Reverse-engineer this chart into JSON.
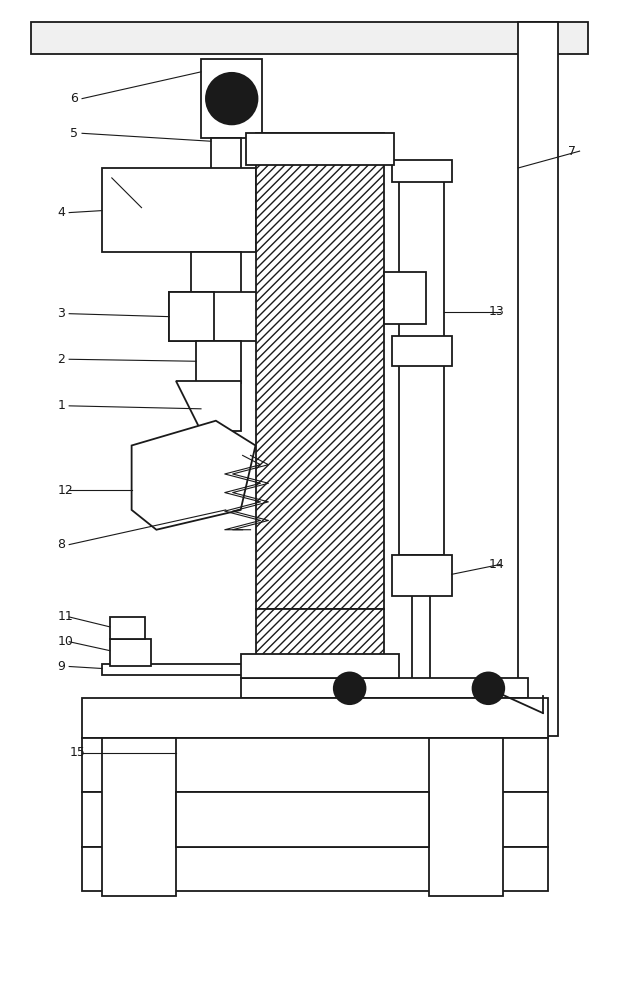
{
  "fig_width": 6.22,
  "fig_height": 10.0,
  "dpi": 100,
  "bg_color": "#ffffff",
  "line_color": "#1a1a1a",
  "line_width": 1.3,
  "thin_lw": 0.8
}
